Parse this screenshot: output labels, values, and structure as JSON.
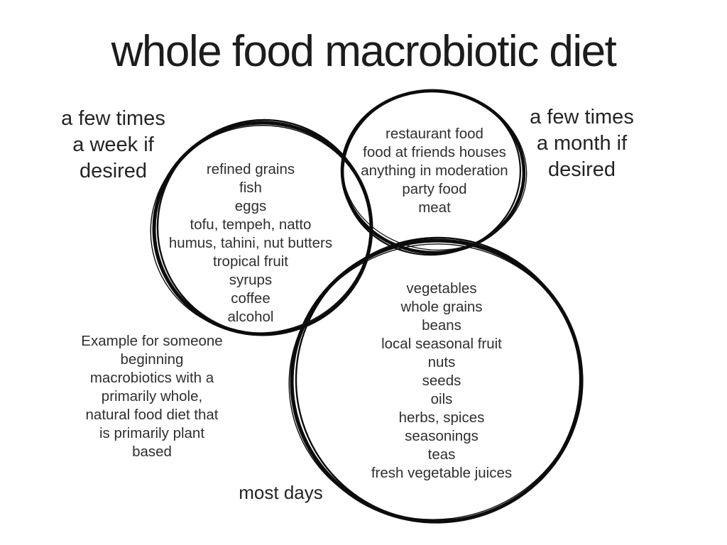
{
  "title": "whole food macrobiotic diet",
  "colors": {
    "background": "#ffffff",
    "circle_ink": "#0c0c0c",
    "text": "#2f2f2f"
  },
  "labels": {
    "weekly_lines": [
      "a few times",
      "a week if",
      "desired"
    ],
    "monthly_lines": [
      "a few times",
      "a month if",
      "desired"
    ],
    "daily": "most days"
  },
  "circles": {
    "weekly": {
      "items": [
        "refined grains",
        "fish",
        "eggs",
        "tofu, tempeh, natto",
        "humus, tahini, nut butters",
        "tropical fruit",
        "syrups",
        "coffee",
        "alcohol"
      ]
    },
    "monthly": {
      "items": [
        "restaurant food",
        "food at friends houses",
        "anything in moderation",
        "party food",
        "meat"
      ]
    },
    "daily": {
      "items": [
        "vegetables",
        "whole grains",
        "beans",
        "local seasonal fruit",
        "nuts",
        "seeds",
        "oils",
        "herbs, spices",
        "seasonings",
        "teas",
        "fresh vegetable juices"
      ]
    }
  },
  "note_lines": [
    "Example for someone",
    "beginning",
    "macrobiotics with a",
    "primarily whole,",
    "natural food diet that",
    "is primarily plant",
    "based"
  ]
}
